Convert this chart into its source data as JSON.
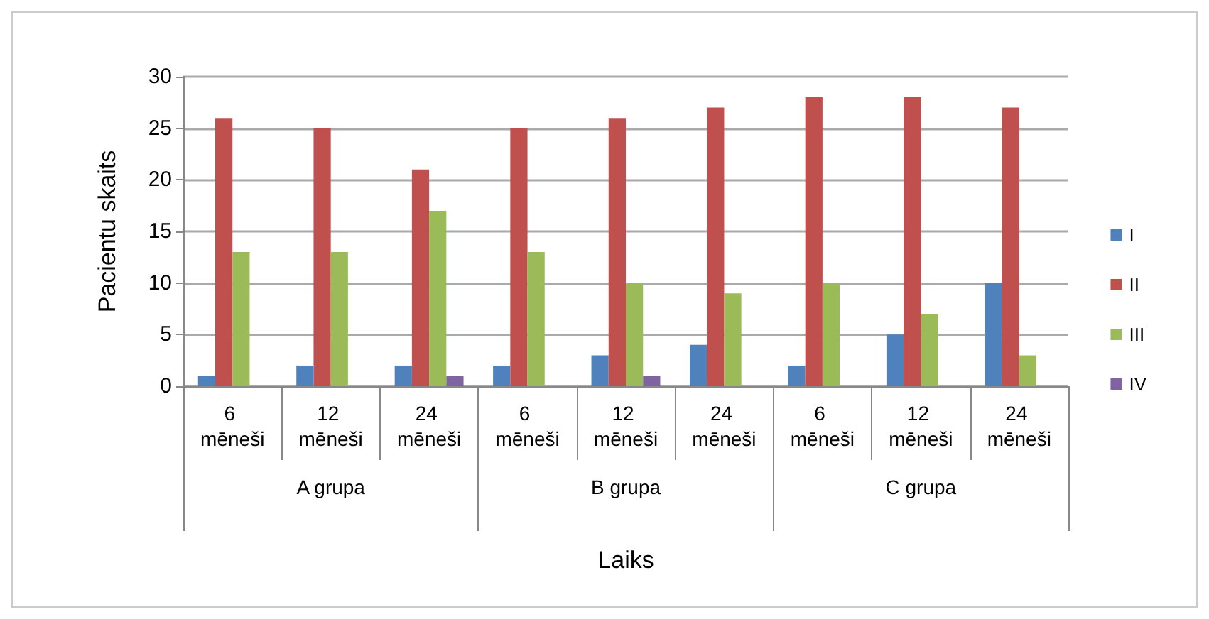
{
  "chart_data": {
    "type": "bar",
    "xlabel": "Laiks",
    "ylabel": "Pacientu skaits",
    "categories": [
      "6 mēneši",
      "12 mēneši",
      "24 mēneši",
      "6 mēneši",
      "12 mēneši",
      "24 mēneši",
      "6 mēneši",
      "12 mēneši",
      "24 mēneši"
    ],
    "annotations": [
      "A grupa",
      "B grupa",
      "C grupa"
    ],
    "series": [
      {
        "name": "I",
        "color": "#4f81bd",
        "values": [
          1,
          2,
          2,
          2,
          3,
          4,
          2,
          5,
          10
        ]
      },
      {
        "name": "II",
        "color": "#c0504d",
        "values": [
          26,
          25,
          21,
          25,
          26,
          27,
          28,
          28,
          27
        ]
      },
      {
        "name": "III",
        "color": "#9bbb59",
        "values": [
          13,
          13,
          17,
          13,
          10,
          9,
          10,
          7,
          3
        ]
      },
      {
        "name": "IV",
        "color": "#8064a2",
        "values": [
          0,
          0,
          1,
          0,
          1,
          0,
          0,
          0,
          0
        ]
      }
    ],
    "ylim": [
      0,
      30
    ],
    "yticks": [
      0,
      5,
      10,
      15,
      20,
      25,
      30
    ],
    "grid": "y",
    "legend": "right"
  }
}
